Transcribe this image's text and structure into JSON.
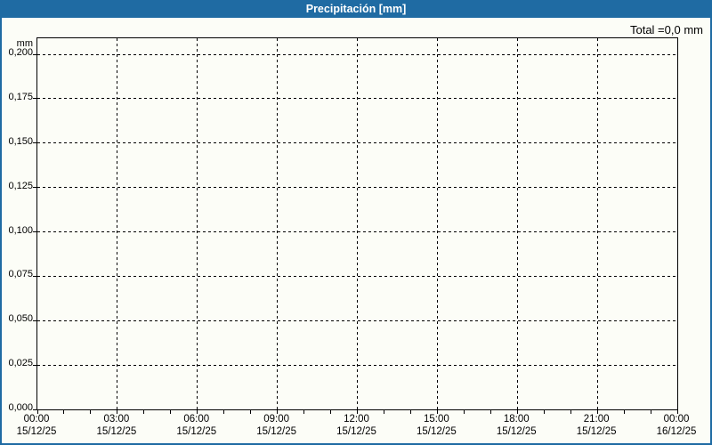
{
  "header": {
    "title": "Precipitación [mm]"
  },
  "total_label": "Total =0,0 mm",
  "colors": {
    "header_bg": "#1f6ba3",
    "window_border": "#1f6ba3",
    "background": "#fcfdf7",
    "grid": "#000000",
    "text": "#000000",
    "title_text": "#ffffff"
  },
  "chart_data": {
    "type": "line",
    "title": "Precipitación [mm]",
    "ylabel": "mm",
    "ylim": [
      0,
      0.209
    ],
    "grid": true,
    "y_ticks": [
      "0,200",
      "0,175",
      "0,150",
      "0,125",
      "0,100",
      "0,075",
      "0,050",
      "0,025",
      "0,000"
    ],
    "x_ticks": [
      {
        "time": "00:00",
        "date": "15/12/25"
      },
      {
        "time": "03:00",
        "date": "15/12/25"
      },
      {
        "time": "06:00",
        "date": "15/12/25"
      },
      {
        "time": "09:00",
        "date": "15/12/25"
      },
      {
        "time": "12:00",
        "date": "15/12/25"
      },
      {
        "time": "15:00",
        "date": "15/12/25"
      },
      {
        "time": "18:00",
        "date": "15/12/25"
      },
      {
        "time": "21:00",
        "date": "15/12/25"
      },
      {
        "time": "00:00",
        "date": "16/12/25"
      }
    ],
    "x_minor_ticks_per_major_interval": 3,
    "series": [
      {
        "name": "Precipitación",
        "values": []
      }
    ],
    "total": "0,0 mm"
  }
}
